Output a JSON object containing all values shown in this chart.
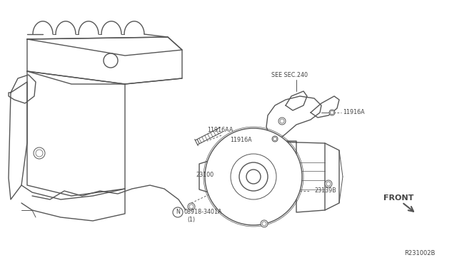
{
  "bg_color": "#ffffff",
  "line_color": "#555555",
  "text_color": "#444444",
  "diagram_id": "R231002B",
  "labels": {
    "see_sec": "SEE SEC.240",
    "11916A_left": "11916A",
    "11916A_right": "11916A",
    "11916AA": "11916AA",
    "23100": "23100",
    "23139B": "23139B",
    "bolt_label": "08918-3401A",
    "bolt_n": "N",
    "bolt_qty": "(1)",
    "front": "FRONT"
  },
  "engine": {
    "cover_top_pts_x": [
      75,
      95,
      115,
      135,
      160,
      185,
      210,
      230,
      245,
      255,
      255,
      245,
      230,
      215,
      200,
      185,
      165,
      145,
      125,
      105,
      85,
      75
    ],
    "cover_top_pts_y": [
      115,
      95,
      82,
      73,
      67,
      65,
      66,
      68,
      70,
      76,
      92,
      102,
      108,
      112,
      114,
      115,
      115,
      114,
      112,
      108,
      110,
      115
    ]
  }
}
